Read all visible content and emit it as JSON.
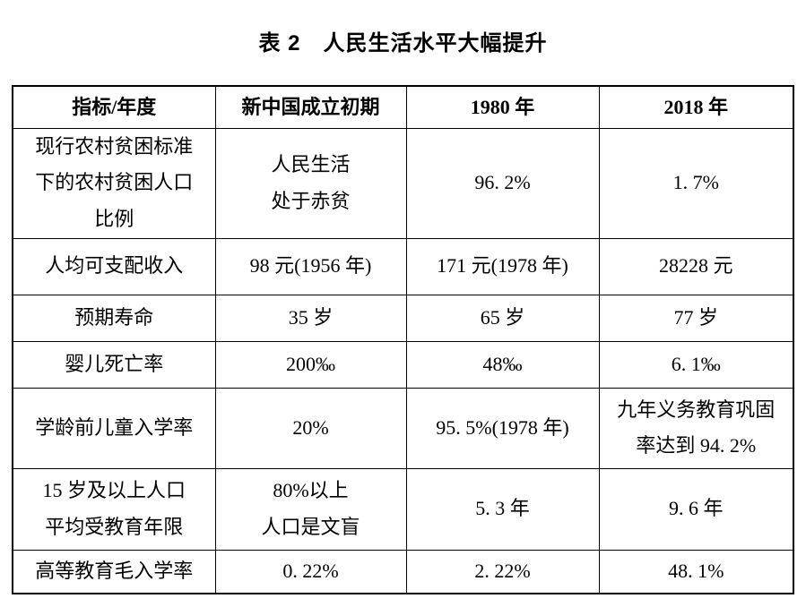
{
  "page": {
    "background_color": "#ffffff",
    "text_color": "#000000"
  },
  "title": "表 2　人民生活水平大幅提升",
  "table": {
    "border_color": "#000000",
    "headers": [
      "指标/年度",
      "新中国成立初期",
      "1980 年",
      "2018 年"
    ],
    "rows": [
      [
        "现行农村贫困标准\n下的农村贫困人口\n比例",
        "人民生活\n处于赤贫",
        "96. 2%",
        "1. 7%"
      ],
      [
        "人均可支配收入",
        "98 元(1956 年)",
        "171 元(1978 年)",
        "28228 元"
      ],
      [
        "预期寿命",
        "35 岁",
        "65 岁",
        "77 岁"
      ],
      [
        "婴儿死亡率",
        "200‰",
        "48‰",
        "6. 1‰"
      ],
      [
        "学龄前儿童入学率",
        "20%",
        "95. 5%(1978 年)",
        "九年义务教育巩固\n率达到 94. 2%"
      ],
      [
        "15 岁及以上人口\n平均受教育年限",
        "80%以上\n人口是文盲",
        "5. 3 年",
        "9. 6 年"
      ],
      [
        "高等教育毛入学率",
        "0. 22%",
        "2. 22%",
        "48. 1%"
      ]
    ]
  }
}
